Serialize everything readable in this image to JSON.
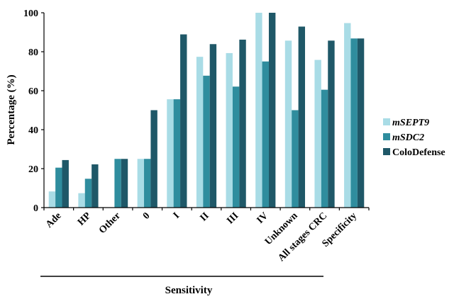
{
  "chart_data": {
    "type": "bar",
    "ylabel": "Percentage (%)",
    "xlabel": "Sensitivity",
    "ylim": [
      0,
      100
    ],
    "yticks": [
      0,
      20,
      40,
      60,
      80,
      100
    ],
    "grid": false,
    "legend_position": "right",
    "categories": [
      "Ade",
      "HP",
      "Other",
      "0",
      "I",
      "II",
      "III",
      "IV",
      "Unknown",
      "All stages CRC",
      "Specificity"
    ],
    "series": [
      {
        "name": "mSEPT9",
        "italic": true,
        "color": "#a9dce6",
        "values": [
          8.3,
          7.4,
          0,
          25,
          55.6,
          77.4,
          79.3,
          100,
          85.7,
          75.8,
          94.7
        ]
      },
      {
        "name": "mSDC2",
        "italic": true,
        "color": "#2f8d9e",
        "values": [
          20.5,
          14.8,
          25,
          25,
          55.6,
          67.7,
          62.1,
          75,
          50,
          60.5,
          86.8
        ]
      },
      {
        "name": "ColoDefense",
        "italic": false,
        "color": "#1f5868",
        "values": [
          24.4,
          22.2,
          25,
          50,
          88.9,
          83.9,
          86.2,
          100,
          92.9,
          85.7,
          86.8
        ]
      }
    ]
  }
}
